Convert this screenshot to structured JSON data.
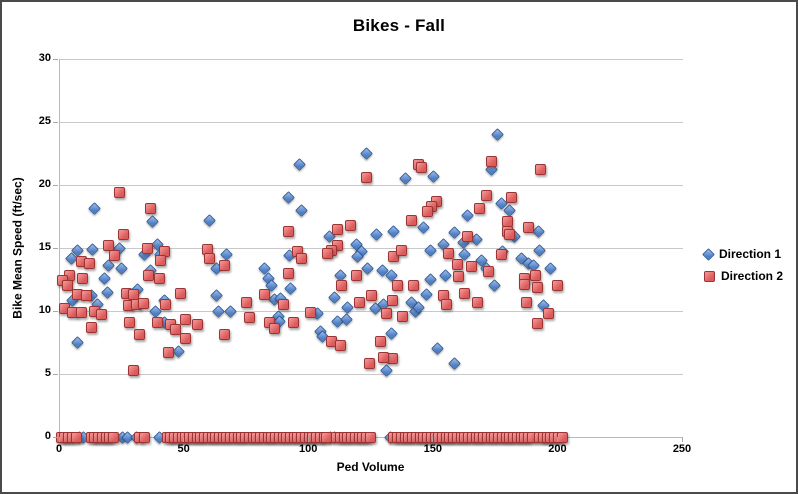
{
  "chart_data": {
    "type": "scatter",
    "title": "Bikes - Fall",
    "xlabel": "Ped Volume",
    "ylabel": "Bike Mean Speed (ft/sec)",
    "xlim": [
      0,
      250
    ],
    "ylim": [
      0,
      30
    ],
    "x_ticks": [
      0,
      50,
      100,
      150,
      200,
      250
    ],
    "y_ticks": [
      0,
      5,
      10,
      15,
      20,
      25,
      30
    ],
    "grid": "horizontal",
    "legend_position": "right",
    "series": [
      {
        "name": "Direction 1",
        "marker": "diamond",
        "fill": "#4f7fc4",
        "highlight": "#93b5e8",
        "border": "#2f5a95",
        "points": [
          [
            14,
            18.1
          ],
          [
            37,
            17.1
          ],
          [
            60,
            17.2
          ],
          [
            7,
            14.8
          ],
          [
            13,
            14.9
          ],
          [
            24,
            15
          ],
          [
            39,
            15.3
          ],
          [
            34,
            14.5
          ],
          [
            40.5,
            14.5
          ],
          [
            4.5,
            14.2
          ],
          [
            67,
            14.5
          ],
          [
            19.5,
            13.6
          ],
          [
            24.5,
            13.4
          ],
          [
            18,
            12.6
          ],
          [
            36.5,
            13.2
          ],
          [
            63,
            13.4
          ],
          [
            19,
            11.5
          ],
          [
            31,
            11.7
          ],
          [
            5,
            10.8
          ],
          [
            12.5,
            11.2
          ],
          [
            15,
            10.5
          ],
          [
            42,
            10.8
          ],
          [
            38.5,
            10
          ],
          [
            63,
            11.2
          ],
          [
            63.5,
            10
          ],
          [
            68.5,
            10
          ],
          [
            42,
            9.1
          ],
          [
            7,
            7.5
          ],
          [
            47.5,
            6.8
          ],
          [
            96,
            21.6
          ],
          [
            123,
            22.5
          ],
          [
            138.5,
            20.5
          ],
          [
            91.5,
            19
          ],
          [
            97,
            18
          ],
          [
            108,
            15.9
          ],
          [
            127,
            16.1
          ],
          [
            134,
            16.3
          ],
          [
            119,
            15.3
          ],
          [
            121,
            14.7
          ],
          [
            119.5,
            14.3
          ],
          [
            92,
            14.4
          ],
          [
            82,
            13.4
          ],
          [
            83.5,
            12.6
          ],
          [
            123.5,
            13.4
          ],
          [
            129.5,
            13.2
          ],
          [
            133,
            12.8
          ],
          [
            112.5,
            12.8
          ],
          [
            85,
            12
          ],
          [
            92.5,
            11.8
          ],
          [
            86,
            10.9
          ],
          [
            88.5,
            11
          ],
          [
            110,
            11.1
          ],
          [
            87.5,
            9.6
          ],
          [
            88,
            9.2
          ],
          [
            115.5,
            10.3
          ],
          [
            111.5,
            9.2
          ],
          [
            115,
            9.3
          ],
          [
            103.5,
            9.8
          ],
          [
            104.5,
            8.4
          ],
          [
            105.5,
            8
          ],
          [
            126.5,
            10.2
          ],
          [
            130,
            10.5
          ],
          [
            141,
            10.7
          ],
          [
            142.5,
            10
          ],
          [
            133,
            8.2
          ],
          [
            131,
            5.3
          ],
          [
            175.5,
            24
          ],
          [
            173,
            21.2
          ],
          [
            150,
            20.7
          ],
          [
            177,
            18.5
          ],
          [
            180.5,
            18
          ],
          [
            163.5,
            17.6
          ],
          [
            146,
            16.6
          ],
          [
            192,
            16.3
          ],
          [
            158.5,
            16.2
          ],
          [
            167,
            15.7
          ],
          [
            162,
            15.4
          ],
          [
            154,
            15.3
          ],
          [
            148.5,
            14.8
          ],
          [
            162.5,
            14.5
          ],
          [
            177.5,
            14.7
          ],
          [
            192.5,
            14.8
          ],
          [
            185,
            14.2
          ],
          [
            188,
            13.8
          ],
          [
            190,
            13.6
          ],
          [
            169,
            14
          ],
          [
            171,
            13.4
          ],
          [
            197,
            13.4
          ],
          [
            154.5,
            12.8
          ],
          [
            148.5,
            12.5
          ],
          [
            182.5,
            15.9
          ],
          [
            147,
            11.3
          ],
          [
            174.5,
            12
          ],
          [
            194,
            10.4
          ],
          [
            151.5,
            7
          ],
          [
            158.5,
            5.8
          ],
          [
            144,
            10.3
          ]
        ],
        "zero_x": [
          8,
          9.5,
          25,
          27,
          30.5,
          40,
          108.5,
          110,
          132.5
        ]
      },
      {
        "name": "Direction 2",
        "marker": "square",
        "fill": "#dd5a5a",
        "highlight": "#ef9494",
        "border": "#9c3434",
        "points": [
          [
            24,
            19.4
          ],
          [
            36.5,
            18.1
          ],
          [
            25.5,
            16.1
          ],
          [
            19.5,
            15.2
          ],
          [
            22,
            14.4
          ],
          [
            35,
            15
          ],
          [
            42,
            14.7
          ],
          [
            40.5,
            14
          ],
          [
            59,
            14.9
          ],
          [
            60,
            14.2
          ],
          [
            8.5,
            13.9
          ],
          [
            12,
            13.8
          ],
          [
            4,
            12.8
          ],
          [
            9,
            12.6
          ],
          [
            66,
            13.6
          ],
          [
            35.5,
            12.8
          ],
          [
            40,
            12.6
          ],
          [
            1,
            12.4
          ],
          [
            3,
            12
          ],
          [
            7,
            11.3
          ],
          [
            10.5,
            11.2
          ],
          [
            26.5,
            11.4
          ],
          [
            29.5,
            11.3
          ],
          [
            48.5,
            11.4
          ],
          [
            2,
            10.2
          ],
          [
            5,
            9.9
          ],
          [
            8.5,
            9.9
          ],
          [
            14,
            10
          ],
          [
            16.5,
            9.7
          ],
          [
            27.5,
            10.4
          ],
          [
            30.5,
            10.5
          ],
          [
            33.5,
            10.6
          ],
          [
            42.5,
            10.5
          ],
          [
            12.5,
            8.7
          ],
          [
            28,
            9.1
          ],
          [
            39,
            9.1
          ],
          [
            44.5,
            8.9
          ],
          [
            46.5,
            8.5
          ],
          [
            50.5,
            9.3
          ],
          [
            55,
            8.9
          ],
          [
            32,
            8.1
          ],
          [
            50.5,
            7.8
          ],
          [
            66,
            8.1
          ],
          [
            43.5,
            6.7
          ],
          [
            29.5,
            5.3
          ],
          [
            123,
            20.6
          ],
          [
            144,
            21.6
          ],
          [
            91.5,
            16.3
          ],
          [
            111.5,
            16.5
          ],
          [
            116.5,
            16.8
          ],
          [
            111.5,
            15.2
          ],
          [
            109,
            14.8
          ],
          [
            107.5,
            14.6
          ],
          [
            95.5,
            14.7
          ],
          [
            97,
            14.2
          ],
          [
            141,
            17.2
          ],
          [
            134,
            14.3
          ],
          [
            137,
            14.8
          ],
          [
            91.5,
            13
          ],
          [
            119,
            12.8
          ],
          [
            75,
            10.7
          ],
          [
            82,
            11.3
          ],
          [
            89.5,
            10.5
          ],
          [
            76,
            9.5
          ],
          [
            84,
            9.1
          ],
          [
            86,
            8.6
          ],
          [
            93.5,
            9.1
          ],
          [
            100.5,
            9.9
          ],
          [
            109,
            7.6
          ],
          [
            112.5,
            7.3
          ],
          [
            120,
            10.7
          ],
          [
            125,
            11.2
          ],
          [
            133.5,
            10.8
          ],
          [
            131,
            9.8
          ],
          [
            137.5,
            9.6
          ],
          [
            128.5,
            7.6
          ],
          [
            133.5,
            6.2
          ],
          [
            124,
            5.8
          ],
          [
            130,
            6.3
          ],
          [
            113,
            12
          ],
          [
            135.5,
            12
          ],
          [
            142,
            12
          ],
          [
            145,
            21.4
          ],
          [
            173,
            21.9
          ],
          [
            193,
            21.2
          ],
          [
            171,
            19.2
          ],
          [
            181,
            19
          ],
          [
            151,
            18.7
          ],
          [
            149,
            18.3
          ],
          [
            147.5,
            17.9
          ],
          [
            168.5,
            18.1
          ],
          [
            179.5,
            17.1
          ],
          [
            179.5,
            16.3
          ],
          [
            188,
            16.6
          ],
          [
            163.5,
            15.9
          ],
          [
            180.5,
            16.1
          ],
          [
            156,
            14.6
          ],
          [
            159.5,
            13.7
          ],
          [
            165,
            13.5
          ],
          [
            172,
            13.1
          ],
          [
            177,
            14.5
          ],
          [
            160,
            12.7
          ],
          [
            186.5,
            12.6
          ],
          [
            191,
            12.8
          ],
          [
            154,
            11.2
          ],
          [
            155,
            10.5
          ],
          [
            162.5,
            11.4
          ],
          [
            167.5,
            10.7
          ],
          [
            186.5,
            12.1
          ],
          [
            191.5,
            11.9
          ],
          [
            199.5,
            12
          ],
          [
            187,
            10.7
          ],
          [
            196,
            9.8
          ],
          [
            191.5,
            9
          ]
        ],
        "zero_x": [
          0.5,
          2,
          3.5,
          5,
          6.5,
          12.5,
          14,
          15.5,
          17,
          18.5,
          20,
          21.5,
          32,
          34,
          43,
          44.5,
          46,
          47.5,
          49,
          50.5,
          52,
          53.5,
          55,
          56.5,
          58,
          59.5,
          61,
          62.5,
          64,
          65.5,
          67,
          68.5,
          70,
          71.5,
          73,
          74.5,
          76,
          77.5,
          79,
          80.5,
          82,
          83.5,
          85,
          86.5,
          88,
          89.5,
          91,
          92.5,
          94,
          95.5,
          97,
          98.5,
          100,
          101.5,
          103,
          104.5,
          106,
          107,
          111,
          112.5,
          114,
          115.5,
          117,
          118.5,
          120,
          121.5,
          123,
          124.5,
          134,
          135.5,
          137,
          138.5,
          140,
          141.5,
          143,
          144.5,
          146,
          147.5,
          149,
          150.5,
          152,
          153.5,
          155,
          156.5,
          158,
          159.5,
          161,
          162.5,
          164,
          165.5,
          167,
          168.5,
          170,
          171.5,
          173,
          174.5,
          176,
          177.5,
          179,
          180.5,
          182,
          183.5,
          185,
          186.5,
          188,
          189.5,
          192.5,
          194,
          195.5,
          197,
          198.5,
          200,
          201.5
        ]
      }
    ]
  }
}
